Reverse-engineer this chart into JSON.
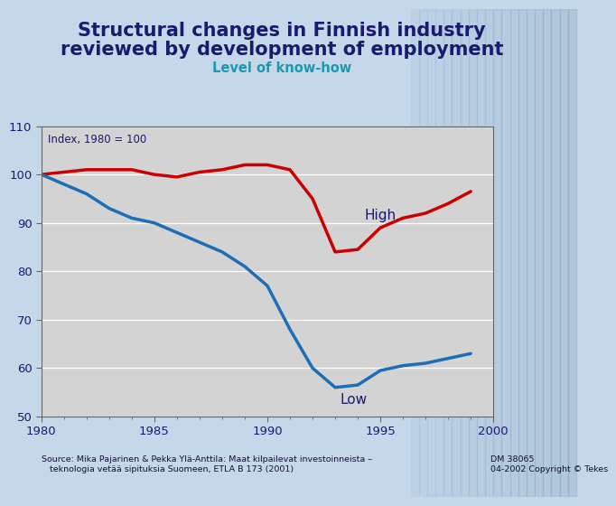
{
  "title_line1": "Structural changes in Finnish industry",
  "title_line2": "reviewed by development of employment",
  "subtitle": "Level of know-how",
  "index_label": "Index, 1980 = 100",
  "ylim": [
    50,
    110
  ],
  "xlim": [
    1980,
    2000
  ],
  "yticks": [
    50,
    60,
    70,
    80,
    90,
    100,
    110
  ],
  "xticks": [
    1980,
    1985,
    1990,
    1995,
    2000
  ],
  "high_color": "#cc0000",
  "low_color": "#1e6eb5",
  "high_label": "High",
  "low_label": "Low",
  "plot_bg": "#d3d3d3",
  "high_x": [
    1980,
    1981,
    1982,
    1983,
    1984,
    1985,
    1986,
    1987,
    1988,
    1989,
    1990,
    1991,
    1992,
    1993,
    1994,
    1995,
    1996,
    1997,
    1998,
    1999
  ],
  "high_y": [
    100,
    100.5,
    101,
    101,
    101,
    100,
    99.5,
    100.5,
    101,
    102,
    102,
    101,
    95,
    84,
    84.5,
    89,
    91,
    92,
    94,
    96.5
  ],
  "low_x": [
    1980,
    1981,
    1982,
    1983,
    1984,
    1985,
    1986,
    1987,
    1988,
    1989,
    1990,
    1991,
    1992,
    1993,
    1994,
    1995,
    1996,
    1997,
    1998,
    1999
  ],
  "low_y": [
    100,
    98,
    96,
    93,
    91,
    90,
    88,
    86,
    84,
    81,
    77,
    68,
    60,
    56,
    56.5,
    59.5,
    60.5,
    61,
    62,
    63
  ],
  "background_color": "#c5d8ea",
  "title_color": "#1a1a6e",
  "subtitle_color": "#1a9ab0",
  "tick_label_color": "#1a1a6e",
  "line_width": 2.5,
  "source_line1": "Source: Mika Pajarinen & Pekka Ylä-Anttila: Maat kilpailevat investoinneista –",
  "source_line2": "   teknologia vetää sipituksia Suomeen, ETLA B 173 (2001)",
  "dm_text": "DM 38065\n04-2002 Copyright © Tekes"
}
